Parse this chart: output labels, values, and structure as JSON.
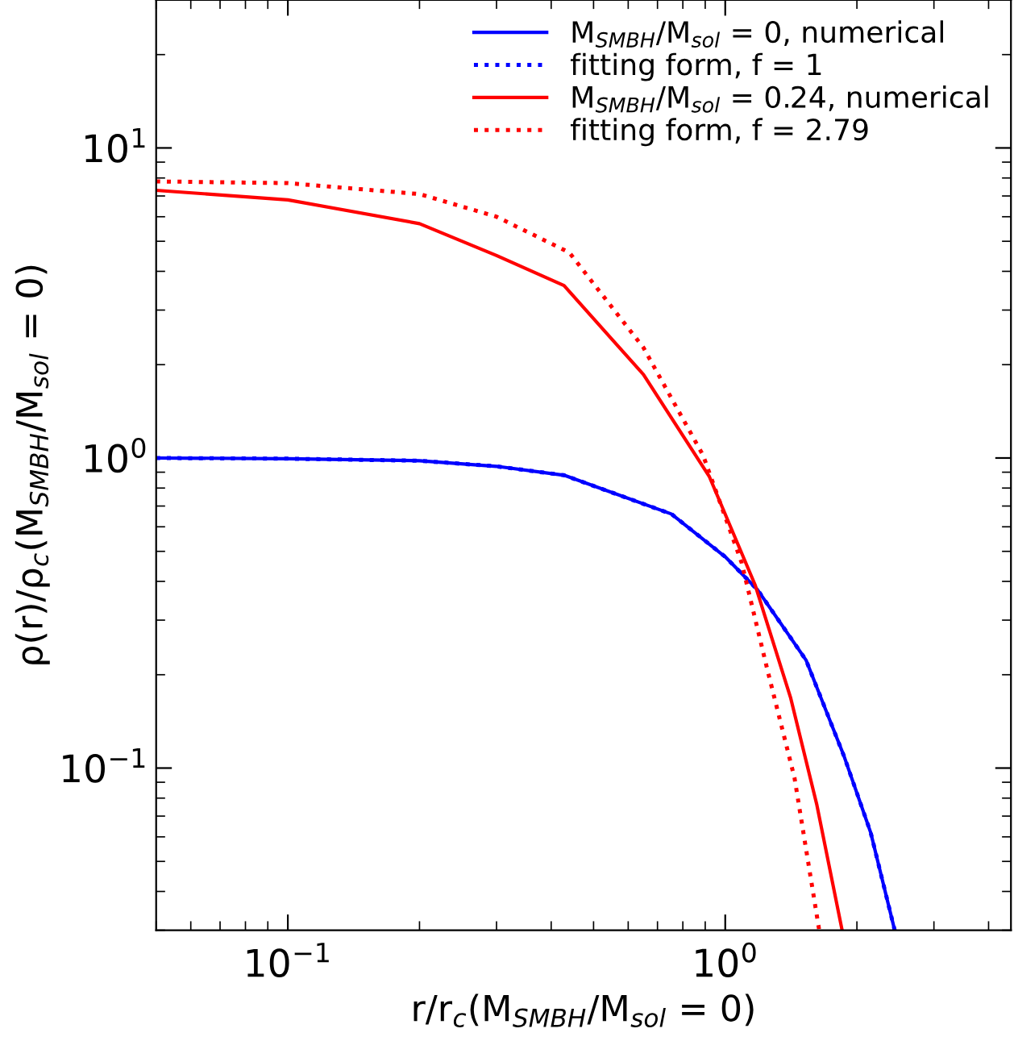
{
  "chart_data": {
    "type": "line",
    "xlabel": "r/r$_{c}$(M$_{SMBH}$/M$_{sol}$ = 0)",
    "ylabel": "ρ(r)/ρ$_{c}$(M$_{SMBH}$/M$_{sol}$ = 0)",
    "log": "xy",
    "xlim": [
      0.05,
      4.5
    ],
    "ylim": [
      0.03,
      30
    ],
    "xticks": [
      {
        "value": 0.1,
        "label": "10$^{−1}$"
      },
      {
        "value": 1,
        "label": "10$^{0}$"
      }
    ],
    "yticks": [
      {
        "value": 0.1,
        "label": "10$^{−1}$"
      },
      {
        "value": 1,
        "label": "10$^{0}$"
      },
      {
        "value": 10,
        "label": "10$^{1}$"
      }
    ],
    "grid": false,
    "legend": "top right",
    "marker": "none",
    "series": [
      {
        "name": "M$_{SMBH}$/M$_{sol}$ = 0, numerical",
        "color": "#0000ff",
        "line_style": "solid",
        "x": [
          0.05,
          0.1,
          0.2,
          0.3,
          0.428,
          0.753,
          1.0,
          1.185,
          1.53,
          1.87,
          2.15,
          2.44
        ],
        "values": [
          1.0,
          0.995,
          0.98,
          0.94,
          0.88,
          0.66,
          0.48,
          0.376,
          0.223,
          0.109,
          0.062,
          0.03
        ]
      },
      {
        "name": "fitting form, f = 1",
        "color": "#0000ff",
        "line_style": "dotted",
        "x": [
          0.05,
          0.1,
          0.2,
          0.3,
          0.428,
          0.753,
          1.0,
          1.185,
          1.53,
          1.87,
          2.15,
          2.44
        ],
        "values": [
          1.0,
          0.995,
          0.98,
          0.94,
          0.88,
          0.66,
          0.48,
          0.376,
          0.223,
          0.109,
          0.062,
          0.03
        ]
      },
      {
        "name": "M$_{SMBH}$/M$_{sol}$ = 0.24, numerical",
        "color": "#ff0000",
        "line_style": "solid",
        "x": [
          0.05,
          0.1,
          0.2,
          0.3,
          0.428,
          0.65,
          0.92,
          1.17,
          1.41,
          1.62,
          1.85
        ],
        "values": [
          7.3,
          6.8,
          5.7,
          4.5,
          3.6,
          1.86,
          0.87,
          0.39,
          0.169,
          0.076,
          0.03
        ]
      },
      {
        "name": "fitting form, f = 2.79",
        "color": "#ff0000",
        "line_style": "dotted",
        "x": [
          0.05,
          0.1,
          0.2,
          0.3,
          0.44,
          0.65,
          0.89,
          1.09,
          1.25,
          1.44,
          1.64
        ],
        "values": [
          7.8,
          7.7,
          7.1,
          6.0,
          4.6,
          2.27,
          1.02,
          0.46,
          0.206,
          0.093,
          0.03
        ]
      }
    ]
  }
}
